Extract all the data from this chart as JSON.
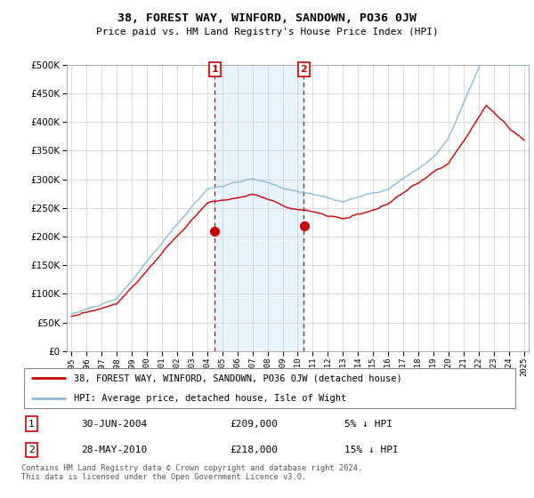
{
  "title": "38, FOREST WAY, WINFORD, SANDOWN, PO36 0JW",
  "subtitle": "Price paid vs. HM Land Registry's House Price Index (HPI)",
  "legend_label_property": "38, FOREST WAY, WINFORD, SANDOWN, PO36 0JW (detached house)",
  "legend_label_hpi": "HPI: Average price, detached house, Isle of Wight",
  "transaction1_date": "30-JUN-2004",
  "transaction1_price": 209000,
  "transaction1_label": "5% ↓ HPI",
  "transaction2_date": "28-MAY-2010",
  "transaction2_price": 218000,
  "transaction2_label": "15% ↓ HPI",
  "footer": "Contains HM Land Registry data © Crown copyright and database right 2024.\nThis data is licensed under the Open Government Licence v3.0.",
  "property_color": "#cc0000",
  "hpi_color": "#88bbdd",
  "transaction_vline_color": "#cc0000",
  "shade_color": "#ddeeff",
  "ylim_min": 0,
  "ylim_max": 500000,
  "ytick_step": 50000,
  "x_start_year": 1995,
  "x_end_year": 2025,
  "transaction1_year": 2004.5,
  "transaction2_year": 2010.4
}
